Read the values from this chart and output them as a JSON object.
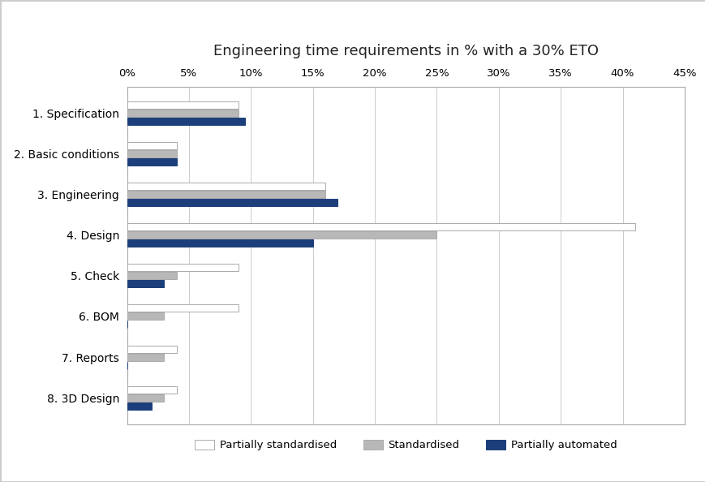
{
  "title": "Engineering time requirements in % with a 30% ETO",
  "categories": [
    "1. Specification",
    "2. Basic conditions",
    "3. Engineering",
    "4. Design",
    "5. Check",
    "6. BOM",
    "7. Reports",
    "8. 3D Design"
  ],
  "series": {
    "Partially standardised": [
      9.0,
      4.0,
      16.0,
      41.0,
      9.0,
      9.0,
      4.0,
      4.0
    ],
    "Standardised": [
      9.0,
      4.0,
      16.0,
      25.0,
      4.0,
      3.0,
      3.0,
      3.0
    ],
    "Partially automated": [
      9.5,
      4.0,
      17.0,
      15.0,
      3.0,
      0.0,
      0.0,
      2.0
    ]
  },
  "colors": {
    "Partially standardised": "#ffffff",
    "Standardised": "#b8b8b8",
    "Partially automated": "#1c3e7a"
  },
  "edgecolors": {
    "Partially standardised": "#aaaaaa",
    "Standardised": "#aaaaaa",
    "Partially automated": "#1c3e7a"
  },
  "xlim": [
    0,
    45
  ],
  "xticks": [
    0,
    5,
    10,
    15,
    20,
    25,
    30,
    35,
    40,
    45
  ],
  "xticklabels": [
    "0%",
    "5%",
    "10%",
    "15%",
    "20%",
    "25%",
    "30%",
    "35%",
    "40%",
    "45%"
  ],
  "background_color": "#ffffff",
  "bar_height": 0.18,
  "bar_gap": 0.02,
  "title_fontsize": 13,
  "tick_fontsize": 9.5,
  "label_fontsize": 10,
  "legend_fontsize": 9.5
}
